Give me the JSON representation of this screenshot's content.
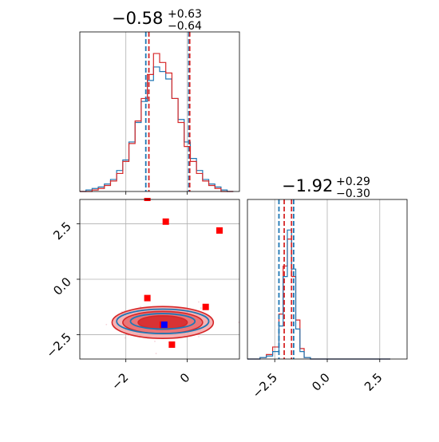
{
  "colors": {
    "blue": "#1f77b4",
    "red": "#d62728",
    "marker_red": "#ff0000",
    "marker_blue": "#0000ff",
    "grid": "#b0b0b0"
  },
  "titles": {
    "p1": {
      "value": "−0.58",
      "plus": "+0.63",
      "minus": "−0.64"
    },
    "p2": {
      "value": "−1.92",
      "plus": "+0.29",
      "minus": "−0.30"
    }
  },
  "ticks": {
    "p1": [
      {
        "value": -2,
        "label": "−2"
      },
      {
        "value": 0,
        "label": "0"
      }
    ],
    "p2": [
      {
        "value": -2.5,
        "label": "−2.5"
      },
      {
        "value": 0,
        "label": "0.0"
      },
      {
        "value": 2.5,
        "label": "2.5"
      }
    ]
  },
  "chart_data": {
    "type": "corner",
    "grid": true,
    "parameters": [
      {
        "name": "p1",
        "range": [
          -3.5,
          1.7
        ],
        "quantile_lines_blue": [
          -1.35,
          0.05
        ],
        "quantile_lines_red": [
          -1.25,
          0.08
        ]
      },
      {
        "name": "p2",
        "range": [
          -3.8,
          3.8
        ],
        "quantile_lines_blue": [
          -2.3,
          -1.6
        ],
        "quantile_lines_red": [
          -2.05,
          -1.7
        ]
      }
    ],
    "hist_p1": {
      "bins_x": [
        -3.5,
        -3.3,
        -3.1,
        -2.9,
        -2.7,
        -2.5,
        -2.3,
        -2.1,
        -1.9,
        -1.7,
        -1.5,
        -1.3,
        -1.1,
        -0.9,
        -0.7,
        -0.5,
        -0.3,
        -0.1,
        0.1,
        0.3,
        0.5,
        0.7,
        0.9,
        1.1,
        1.3,
        1.5
      ],
      "blue": [
        0.0,
        0.01,
        0.02,
        0.03,
        0.05,
        0.08,
        0.14,
        0.21,
        0.33,
        0.46,
        0.6,
        0.74,
        0.83,
        0.8,
        0.75,
        0.62,
        0.48,
        0.33,
        0.22,
        0.14,
        0.08,
        0.05,
        0.03,
        0.01,
        0.0
      ],
      "red": [
        0.0,
        0.0,
        0.01,
        0.02,
        0.04,
        0.07,
        0.12,
        0.2,
        0.32,
        0.47,
        0.62,
        0.78,
        0.92,
        0.86,
        0.79,
        0.62,
        0.46,
        0.3,
        0.2,
        0.12,
        0.07,
        0.04,
        0.02,
        0.0,
        0.0
      ]
    },
    "hist_p2": {
      "bins_x": [
        -3.8,
        -3.5,
        -3.2,
        -2.9,
        -2.6,
        -2.3,
        -2.1,
        -1.9,
        -1.7,
        -1.5,
        -1.3,
        -1.1,
        -0.8,
        -0.5,
        0.0,
        1.0,
        2.0,
        3.0
      ],
      "blue": [
        0.0,
        0.0,
        0.01,
        0.02,
        0.05,
        0.22,
        0.55,
        0.86,
        0.6,
        0.2,
        0.05,
        0.01,
        0.0,
        0.0,
        0.0,
        0.0,
        0.0
      ],
      "red": [
        0.0,
        0.0,
        0.01,
        0.03,
        0.08,
        0.3,
        0.62,
        0.8,
        0.55,
        0.26,
        0.07,
        0.01,
        0.0,
        0.0,
        0.0,
        0.0,
        0.0
      ]
    },
    "contours": {
      "blue": {
        "center": [
          -0.8,
          -1.9
        ],
        "levels": [
          [
            1.05,
            0.35
          ],
          [
            1.5,
            0.55
          ]
        ]
      },
      "red": {
        "center": [
          -0.8,
          -1.95
        ],
        "levels": [
          [
            0.8,
            0.3
          ],
          [
            1.3,
            0.5
          ],
          [
            1.65,
            0.72
          ]
        ]
      }
    },
    "markers_red": [
      [
        -0.7,
        2.6
      ],
      [
        1.05,
        2.2
      ],
      [
        -1.3,
        -0.85
      ],
      [
        0.6,
        -1.25
      ],
      [
        -0.5,
        -2.95
      ],
      [
        -0.8,
        -2.05
      ]
    ],
    "marker_blue": [
      -0.75,
      -2.05
    ]
  }
}
